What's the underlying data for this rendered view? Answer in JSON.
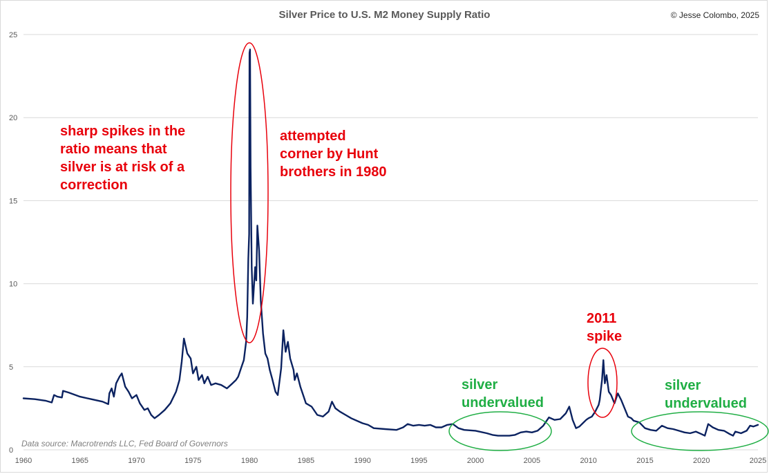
{
  "header": {
    "title": "Silver Price to U.S. M2 Money Supply Ratio",
    "copyright": "© Jesse Colombo, 2025"
  },
  "footer": {
    "source": "Data source: Macrotrends LLC, Fed Board of Governors"
  },
  "annotations": {
    "spikes": "sharp spikes in the\nratio means that\nsilver is at risk of a\ncorrection",
    "hunt": "attempted\ncorner by Hunt\nbrothers in 1980",
    "spike2011": "2011\nspike",
    "undervalued_1": "silver\nundervalued",
    "undervalued_2": "silver\nundervalued"
  },
  "colors": {
    "line": "#0b2260",
    "red": "#e8000b",
    "green": "#1fae44",
    "grid": "#d9d9d9"
  },
  "chart_data": {
    "type": "line",
    "title": "Silver Price to U.S. M2 Money Supply Ratio",
    "xlabel": "",
    "ylabel": "",
    "xlim": [
      1960,
      2025
    ],
    "ylim": [
      0,
      25
    ],
    "grid": true,
    "x_ticks": [
      1960,
      1965,
      1970,
      1975,
      1980,
      1985,
      1990,
      1995,
      2000,
      2005,
      2010,
      2015,
      2020,
      2025
    ],
    "y_ticks": [
      0,
      5,
      10,
      15,
      20,
      25
    ],
    "series": [
      {
        "points": [
          [
            1960.0,
            3.1
          ],
          [
            1961.0,
            3.05
          ],
          [
            1962.0,
            2.95
          ],
          [
            1962.5,
            2.85
          ],
          [
            1962.7,
            3.3
          ],
          [
            1963.0,
            3.2
          ],
          [
            1963.4,
            3.15
          ],
          [
            1963.5,
            3.55
          ],
          [
            1964.0,
            3.45
          ],
          [
            1965.0,
            3.2
          ],
          [
            1966.0,
            3.05
          ],
          [
            1967.0,
            2.9
          ],
          [
            1967.5,
            2.75
          ],
          [
            1967.6,
            3.4
          ],
          [
            1967.8,
            3.7
          ],
          [
            1968.0,
            3.2
          ],
          [
            1968.2,
            4.0
          ],
          [
            1968.5,
            4.4
          ],
          [
            1968.7,
            4.6
          ],
          [
            1969.0,
            3.8
          ],
          [
            1969.3,
            3.5
          ],
          [
            1969.6,
            3.1
          ],
          [
            1970.0,
            3.3
          ],
          [
            1970.3,
            2.8
          ],
          [
            1970.7,
            2.4
          ],
          [
            1971.0,
            2.5
          ],
          [
            1971.3,
            2.1
          ],
          [
            1971.6,
            1.9
          ],
          [
            1972.0,
            2.1
          ],
          [
            1972.5,
            2.4
          ],
          [
            1973.0,
            2.8
          ],
          [
            1973.5,
            3.5
          ],
          [
            1973.8,
            4.2
          ],
          [
            1974.0,
            5.3
          ],
          [
            1974.2,
            6.7
          ],
          [
            1974.5,
            5.8
          ],
          [
            1974.8,
            5.5
          ],
          [
            1975.0,
            4.6
          ],
          [
            1975.3,
            5.0
          ],
          [
            1975.5,
            4.2
          ],
          [
            1975.8,
            4.5
          ],
          [
            1976.0,
            4.0
          ],
          [
            1976.3,
            4.4
          ],
          [
            1976.6,
            3.9
          ],
          [
            1977.0,
            4.0
          ],
          [
            1977.5,
            3.9
          ],
          [
            1978.0,
            3.7
          ],
          [
            1978.5,
            4.0
          ],
          [
            1978.8,
            4.2
          ],
          [
            1979.0,
            4.4
          ],
          [
            1979.3,
            5.0
          ],
          [
            1979.5,
            5.4
          ],
          [
            1979.7,
            6.5
          ],
          [
            1979.8,
            8.0
          ],
          [
            1979.9,
            11.5
          ],
          [
            1979.97,
            13.0
          ],
          [
            1980.0,
            23.9
          ],
          [
            1980.05,
            24.1
          ],
          [
            1980.1,
            17.0
          ],
          [
            1980.2,
            11.0
          ],
          [
            1980.3,
            8.8
          ],
          [
            1980.5,
            11.0
          ],
          [
            1980.6,
            10.2
          ],
          [
            1980.7,
            13.5
          ],
          [
            1980.85,
            12.0
          ],
          [
            1981.0,
            9.0
          ],
          [
            1981.2,
            7.0
          ],
          [
            1981.4,
            5.8
          ],
          [
            1981.6,
            5.5
          ],
          [
            1981.8,
            4.8
          ],
          [
            1982.0,
            4.3
          ],
          [
            1982.3,
            3.5
          ],
          [
            1982.5,
            3.3
          ],
          [
            1982.8,
            4.9
          ],
          [
            1983.0,
            7.2
          ],
          [
            1983.2,
            5.9
          ],
          [
            1983.4,
            6.5
          ],
          [
            1983.6,
            5.5
          ],
          [
            1983.9,
            4.8
          ],
          [
            1984.0,
            4.2
          ],
          [
            1984.2,
            4.6
          ],
          [
            1984.5,
            3.8
          ],
          [
            1984.8,
            3.2
          ],
          [
            1985.0,
            2.8
          ],
          [
            1985.5,
            2.6
          ],
          [
            1986.0,
            2.1
          ],
          [
            1986.5,
            2.0
          ],
          [
            1987.0,
            2.3
          ],
          [
            1987.3,
            2.9
          ],
          [
            1987.6,
            2.5
          ],
          [
            1988.0,
            2.3
          ],
          [
            1988.5,
            2.1
          ],
          [
            1989.0,
            1.9
          ],
          [
            1990.0,
            1.6
          ],
          [
            1990.5,
            1.5
          ],
          [
            1991.0,
            1.3
          ],
          [
            1992.0,
            1.25
          ],
          [
            1993.0,
            1.2
          ],
          [
            1993.6,
            1.35
          ],
          [
            1994.0,
            1.55
          ],
          [
            1994.5,
            1.45
          ],
          [
            1995.0,
            1.5
          ],
          [
            1995.5,
            1.45
          ],
          [
            1996.0,
            1.5
          ],
          [
            1996.5,
            1.35
          ],
          [
            1997.0,
            1.35
          ],
          [
            1997.5,
            1.5
          ],
          [
            1998.0,
            1.55
          ],
          [
            1998.5,
            1.3
          ],
          [
            1999.0,
            1.2
          ],
          [
            2000.0,
            1.15
          ],
          [
            2001.0,
            1.0
          ],
          [
            2001.5,
            0.9
          ],
          [
            2002.0,
            0.85
          ],
          [
            2003.0,
            0.85
          ],
          [
            2003.5,
            0.9
          ],
          [
            2004.0,
            1.05
          ],
          [
            2004.5,
            1.1
          ],
          [
            2005.0,
            1.05
          ],
          [
            2005.5,
            1.15
          ],
          [
            2006.0,
            1.45
          ],
          [
            2006.5,
            1.95
          ],
          [
            2007.0,
            1.8
          ],
          [
            2007.5,
            1.85
          ],
          [
            2008.0,
            2.2
          ],
          [
            2008.3,
            2.6
          ],
          [
            2008.6,
            1.8
          ],
          [
            2008.9,
            1.3
          ],
          [
            2009.2,
            1.4
          ],
          [
            2009.5,
            1.6
          ],
          [
            2009.8,
            1.8
          ],
          [
            2010.0,
            1.9
          ],
          [
            2010.3,
            2.0
          ],
          [
            2010.6,
            2.3
          ],
          [
            2010.9,
            2.7
          ],
          [
            2011.0,
            3.0
          ],
          [
            2011.2,
            4.2
          ],
          [
            2011.32,
            5.4
          ],
          [
            2011.45,
            4.0
          ],
          [
            2011.6,
            4.5
          ],
          [
            2011.8,
            3.5
          ],
          [
            2012.0,
            3.3
          ],
          [
            2012.3,
            2.8
          ],
          [
            2012.6,
            3.4
          ],
          [
            2012.9,
            3.0
          ],
          [
            2013.2,
            2.5
          ],
          [
            2013.5,
            2.0
          ],
          [
            2013.8,
            1.9
          ],
          [
            2014.0,
            1.75
          ],
          [
            2014.5,
            1.65
          ],
          [
            2015.0,
            1.3
          ],
          [
            2015.5,
            1.2
          ],
          [
            2016.0,
            1.15
          ],
          [
            2016.5,
            1.45
          ],
          [
            2017.0,
            1.3
          ],
          [
            2017.5,
            1.25
          ],
          [
            2018.0,
            1.15
          ],
          [
            2018.5,
            1.05
          ],
          [
            2019.0,
            1.0
          ],
          [
            2019.5,
            1.1
          ],
          [
            2020.0,
            0.95
          ],
          [
            2020.3,
            0.85
          ],
          [
            2020.6,
            1.55
          ],
          [
            2021.0,
            1.35
          ],
          [
            2021.5,
            1.2
          ],
          [
            2022.0,
            1.15
          ],
          [
            2022.5,
            0.95
          ],
          [
            2022.8,
            0.85
          ],
          [
            2023.0,
            1.1
          ],
          [
            2023.5,
            1.0
          ],
          [
            2024.0,
            1.15
          ],
          [
            2024.3,
            1.45
          ],
          [
            2024.6,
            1.4
          ],
          [
            2025.0,
            1.5
          ]
        ]
      }
    ]
  }
}
